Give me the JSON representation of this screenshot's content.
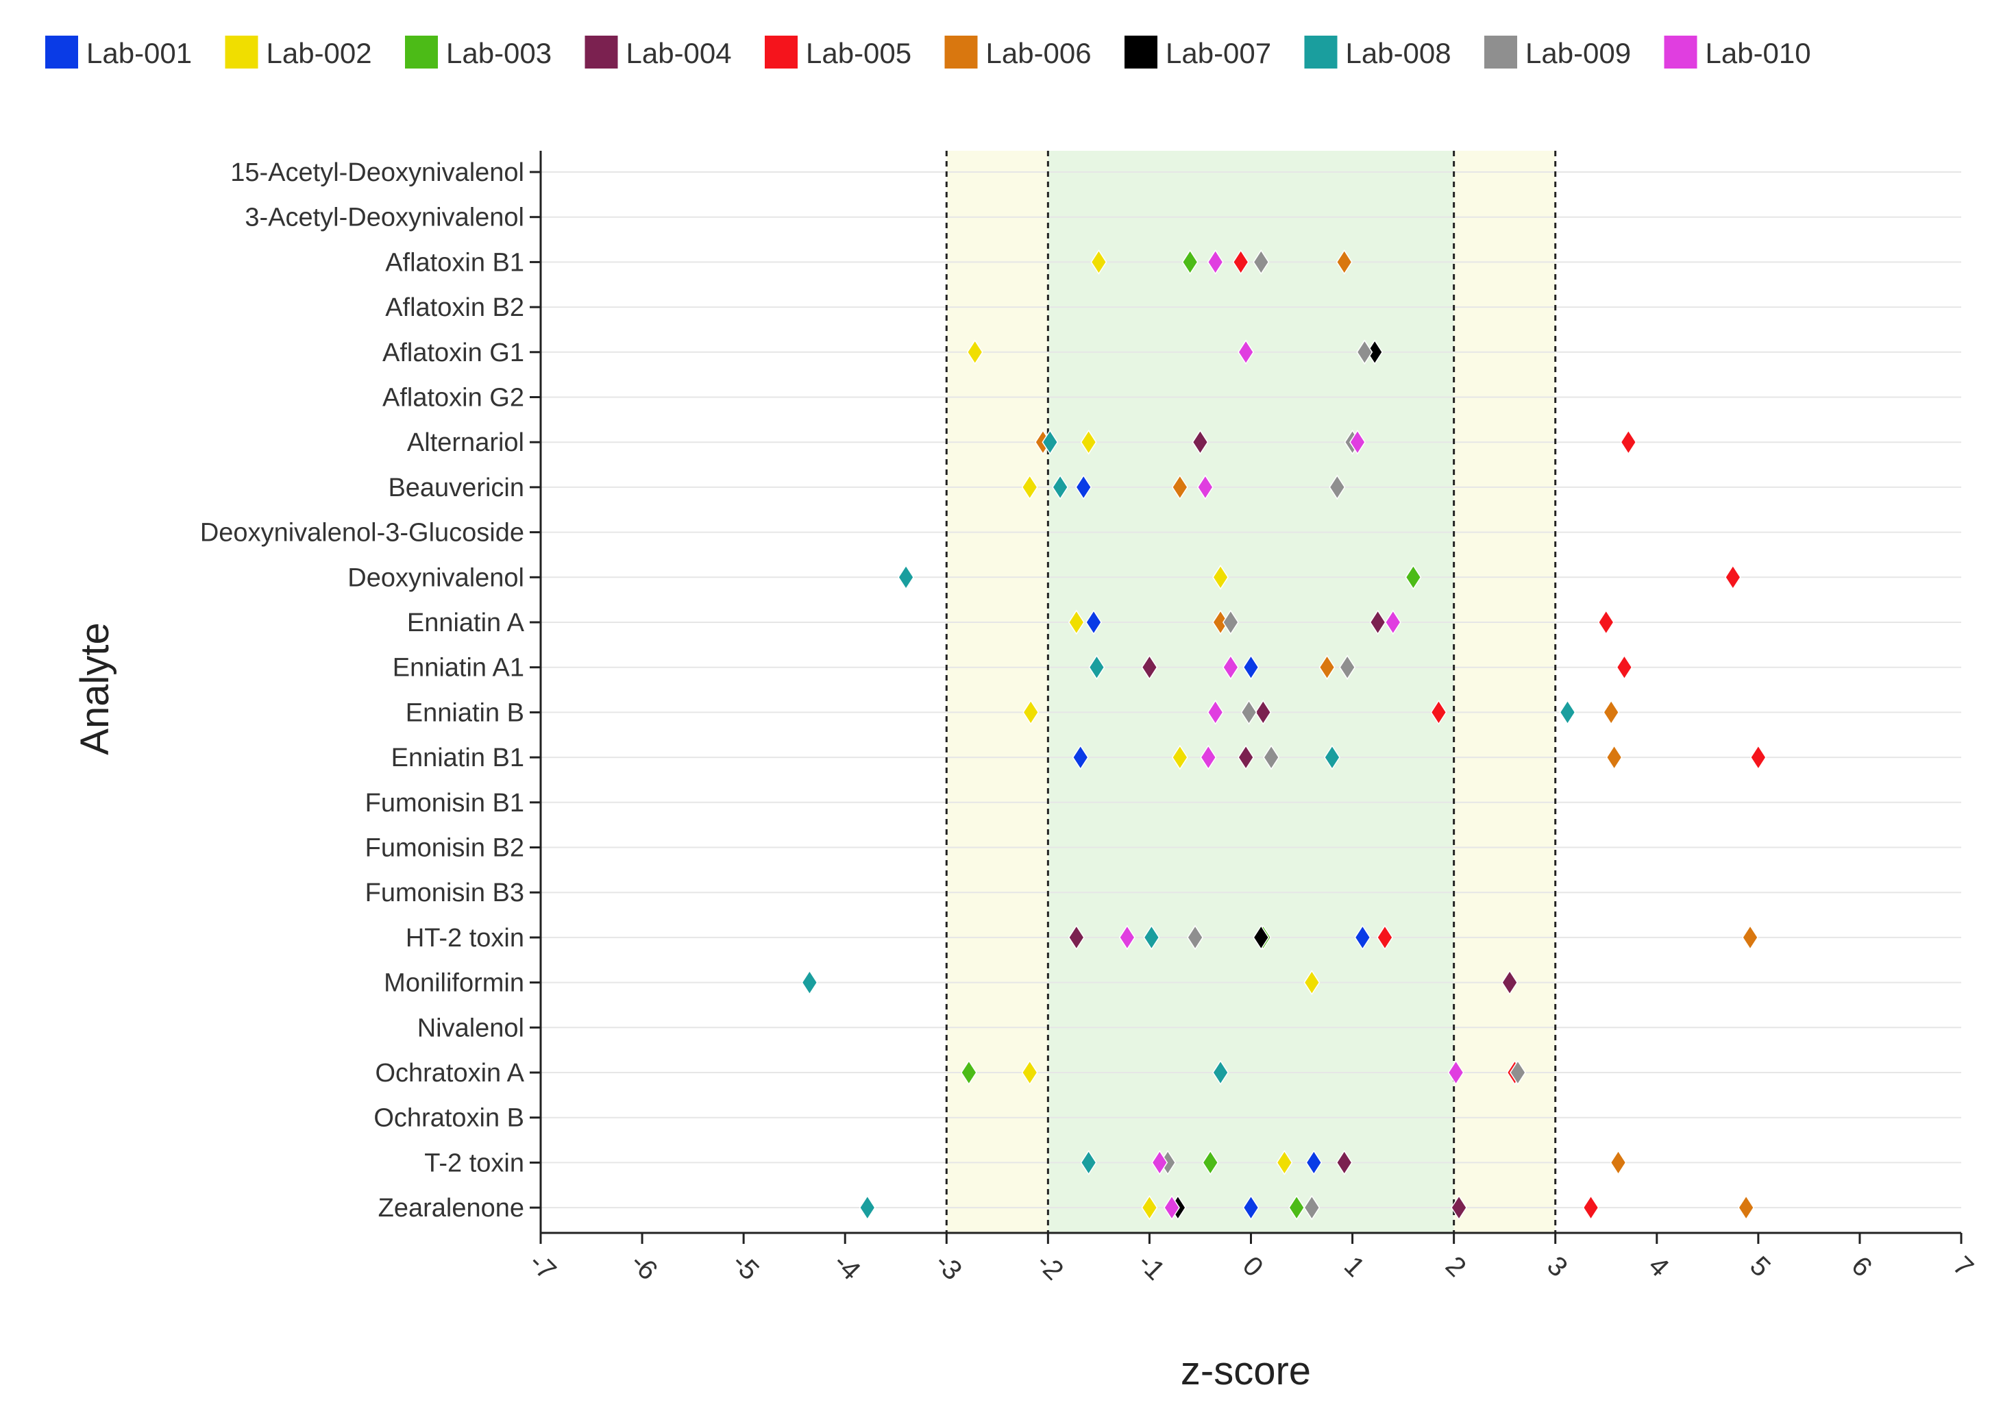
{
  "chart_data": {
    "type": "scatter",
    "title": "",
    "xlabel": "z-score",
    "ylabel": "Analyte",
    "xlim": [
      -7,
      7
    ],
    "xticks": [
      "-7",
      "-6",
      "-5",
      "-4",
      "-3",
      "-2",
      "-1",
      "0",
      "1",
      "2",
      "3",
      "4",
      "5",
      "6",
      "7"
    ],
    "grid": true,
    "legend_position": "top",
    "bands": [
      {
        "from": -3,
        "to": -2,
        "color": "#fbfbe6"
      },
      {
        "from": -2,
        "to": 2,
        "color": "#e7f6e3"
      },
      {
        "from": 2,
        "to": 3,
        "color": "#fbfbe6"
      }
    ],
    "reference_lines": [
      -3,
      -2,
      2,
      3
    ],
    "categories": [
      "15-Acetyl-Deoxynivalenol",
      "3-Acetyl-Deoxynivalenol",
      "Aflatoxin B1",
      "Aflatoxin B2",
      "Aflatoxin G1",
      "Aflatoxin G2",
      "Alternariol",
      "Beauvericin",
      "Deoxynivalenol-3-Glucoside",
      "Deoxynivalenol",
      "Enniatin A",
      "Enniatin A1",
      "Enniatin B",
      "Enniatin B1",
      "Fumonisin B1",
      "Fumonisin B2",
      "Fumonisin B3",
      "HT-2 toxin",
      "Moniliformin",
      "Nivalenol",
      "Ochratoxin A",
      "Ochratoxin B",
      "T-2 toxin",
      "Zearalenone"
    ],
    "series": [
      {
        "name": "Lab-001",
        "color": "#0a3be6",
        "points": [
          {
            "analyte": "Beauvericin",
            "z": -1.65
          },
          {
            "analyte": "Enniatin A",
            "z": -1.55
          },
          {
            "analyte": "Enniatin A1",
            "z": 0.0
          },
          {
            "analyte": "Enniatin B1",
            "z": -1.68
          },
          {
            "analyte": "HT-2 toxin",
            "z": 1.1
          },
          {
            "analyte": "T-2 toxin",
            "z": 0.62
          },
          {
            "analyte": "Zearalenone",
            "z": 0.0
          }
        ]
      },
      {
        "name": "Lab-002",
        "color": "#f0de00",
        "points": [
          {
            "analyte": "Aflatoxin B1",
            "z": -1.5
          },
          {
            "analyte": "Aflatoxin G1",
            "z": -2.72
          },
          {
            "analyte": "Alternariol",
            "z": -1.6
          },
          {
            "analyte": "Beauvericin",
            "z": -2.18
          },
          {
            "analyte": "Deoxynivalenol",
            "z": -0.3
          },
          {
            "analyte": "Enniatin A",
            "z": -1.72
          },
          {
            "analyte": "Enniatin B",
            "z": -2.17
          },
          {
            "analyte": "Enniatin B1",
            "z": -0.7
          },
          {
            "analyte": "Moniliformin",
            "z": 0.6
          },
          {
            "analyte": "Ochratoxin A",
            "z": -2.18
          },
          {
            "analyte": "T-2 toxin",
            "z": 0.33
          },
          {
            "analyte": "Zearalenone",
            "z": -1.0
          }
        ]
      },
      {
        "name": "Lab-003",
        "color": "#4cbb17",
        "points": [
          {
            "analyte": "Aflatoxin B1",
            "z": -0.6
          },
          {
            "analyte": "Deoxynivalenol",
            "z": 1.6
          },
          {
            "analyte": "HT-2 toxin",
            "z": 0.12
          },
          {
            "analyte": "Ochratoxin A",
            "z": -2.78
          },
          {
            "analyte": "T-2 toxin",
            "z": -0.4
          },
          {
            "analyte": "Zearalenone",
            "z": 0.45
          }
        ]
      },
      {
        "name": "Lab-004",
        "color": "#7b2150",
        "points": [
          {
            "analyte": "Alternariol",
            "z": -0.5
          },
          {
            "analyte": "Enniatin A",
            "z": 1.25
          },
          {
            "analyte": "Enniatin A1",
            "z": -1.0
          },
          {
            "analyte": "Enniatin B",
            "z": 0.12
          },
          {
            "analyte": "Enniatin B1",
            "z": -0.05
          },
          {
            "analyte": "HT-2 toxin",
            "z": -1.72
          },
          {
            "analyte": "Moniliformin",
            "z": 2.55
          },
          {
            "analyte": "T-2 toxin",
            "z": 0.92
          },
          {
            "analyte": "Zearalenone",
            "z": 2.05
          }
        ]
      },
      {
        "name": "Lab-005",
        "color": "#f5141c",
        "points": [
          {
            "analyte": "Aflatoxin B1",
            "z": -0.1
          },
          {
            "analyte": "Alternariol",
            "z": 3.72
          },
          {
            "analyte": "Deoxynivalenol",
            "z": 4.75
          },
          {
            "analyte": "Enniatin A",
            "z": 3.5
          },
          {
            "analyte": "Enniatin A1",
            "z": 3.68
          },
          {
            "analyte": "Enniatin B",
            "z": 1.85
          },
          {
            "analyte": "Enniatin B1",
            "z": 5.0
          },
          {
            "analyte": "HT-2 toxin",
            "z": 1.32
          },
          {
            "analyte": "Ochratoxin A",
            "z": 2.6
          },
          {
            "analyte": "Zearalenone",
            "z": 3.35
          }
        ]
      },
      {
        "name": "Lab-006",
        "color": "#d9770f",
        "points": [
          {
            "analyte": "Aflatoxin B1",
            "z": 0.92
          },
          {
            "analyte": "Alternariol",
            "z": -2.05
          },
          {
            "analyte": "Beauvericin",
            "z": -0.7
          },
          {
            "analyte": "Enniatin A",
            "z": -0.3
          },
          {
            "analyte": "Enniatin A1",
            "z": 0.75
          },
          {
            "analyte": "Enniatin B",
            "z": 3.55
          },
          {
            "analyte": "Enniatin B1",
            "z": 3.58
          },
          {
            "analyte": "HT-2 toxin",
            "z": 4.92
          },
          {
            "analyte": "T-2 toxin",
            "z": 3.62
          },
          {
            "analyte": "Zearalenone",
            "z": 4.88
          }
        ]
      },
      {
        "name": "Lab-007",
        "color": "#000000",
        "points": [
          {
            "analyte": "Aflatoxin G1",
            "z": 1.22
          },
          {
            "analyte": "HT-2 toxin",
            "z": 0.1
          },
          {
            "analyte": "Zearalenone",
            "z": -0.72
          }
        ]
      },
      {
        "name": "Lab-008",
        "color": "#1a9e9e",
        "points": [
          {
            "analyte": "Alternariol",
            "z": -1.98
          },
          {
            "analyte": "Beauvericin",
            "z": -1.88
          },
          {
            "analyte": "Deoxynivalenol",
            "z": -3.4
          },
          {
            "analyte": "Enniatin A1",
            "z": -1.52
          },
          {
            "analyte": "Enniatin B",
            "z": 3.12
          },
          {
            "analyte": "Enniatin B1",
            "z": 0.8
          },
          {
            "analyte": "HT-2 toxin",
            "z": -0.98
          },
          {
            "analyte": "Moniliformin",
            "z": -4.35
          },
          {
            "analyte": "Ochratoxin A",
            "z": -0.3
          },
          {
            "analyte": "T-2 toxin",
            "z": -1.6
          },
          {
            "analyte": "Zearalenone",
            "z": -3.78
          }
        ]
      },
      {
        "name": "Lab-009",
        "color": "#8f8f8f",
        "points": [
          {
            "analyte": "Aflatoxin B1",
            "z": 0.1
          },
          {
            "analyte": "Aflatoxin G1",
            "z": 1.12
          },
          {
            "analyte": "Alternariol",
            "z": 1.0
          },
          {
            "analyte": "Beauvericin",
            "z": 0.85
          },
          {
            "analyte": "Enniatin A",
            "z": -0.2
          },
          {
            "analyte": "Enniatin A1",
            "z": 0.95
          },
          {
            "analyte": "Enniatin B",
            "z": -0.02
          },
          {
            "analyte": "Enniatin B1",
            "z": 0.2
          },
          {
            "analyte": "HT-2 toxin",
            "z": -0.55
          },
          {
            "analyte": "Ochratoxin A",
            "z": 2.63
          },
          {
            "analyte": "T-2 toxin",
            "z": -0.82
          },
          {
            "analyte": "Zearalenone",
            "z": 0.6
          }
        ]
      },
      {
        "name": "Lab-010",
        "color": "#e03ee0",
        "points": [
          {
            "analyte": "Aflatoxin B1",
            "z": -0.35
          },
          {
            "analyte": "Aflatoxin G1",
            "z": -0.05
          },
          {
            "analyte": "Alternariol",
            "z": 1.05
          },
          {
            "analyte": "Beauvericin",
            "z": -0.45
          },
          {
            "analyte": "Enniatin A",
            "z": 1.4
          },
          {
            "analyte": "Enniatin A1",
            "z": -0.2
          },
          {
            "analyte": "Enniatin B",
            "z": -0.35
          },
          {
            "analyte": "Enniatin B1",
            "z": -0.42
          },
          {
            "analyte": "HT-2 toxin",
            "z": -1.22
          },
          {
            "analyte": "Ochratoxin A",
            "z": 2.02
          },
          {
            "analyte": "T-2 toxin",
            "z": -0.9
          },
          {
            "analyte": "Zearalenone",
            "z": -0.78
          }
        ]
      }
    ]
  }
}
